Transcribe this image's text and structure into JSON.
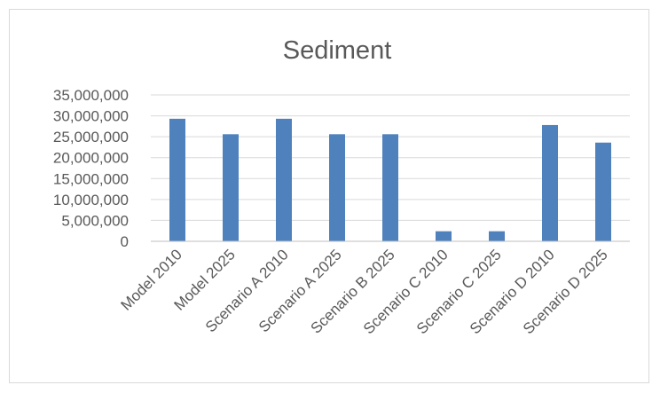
{
  "chart_data": {
    "type": "bar",
    "title": "Sediment",
    "xlabel": "",
    "ylabel": "",
    "categories": [
      "Model 2010",
      "Model 2025",
      "Scenario A 2010",
      "Scenario A 2025",
      "Scenario B 2025",
      "Scenario C 2010",
      "Scenario C 2025",
      "Scenario D 2010",
      "Scenario D 2025"
    ],
    "values": [
      29300000,
      25600000,
      29300000,
      25600000,
      25600000,
      2400000,
      2400000,
      27800000,
      23600000
    ],
    "ylim": [
      0,
      35000000
    ],
    "yticks": [
      0,
      5000000,
      10000000,
      15000000,
      20000000,
      25000000,
      30000000,
      35000000
    ],
    "ytick_labels": [
      "0",
      "5,000,000",
      "10,000,000",
      "15,000,000",
      "20,000,000",
      "25,000,000",
      "30,000,000",
      "35,000,000"
    ],
    "grid": true,
    "legend": "none",
    "bar_color": "#4f81bd"
  }
}
